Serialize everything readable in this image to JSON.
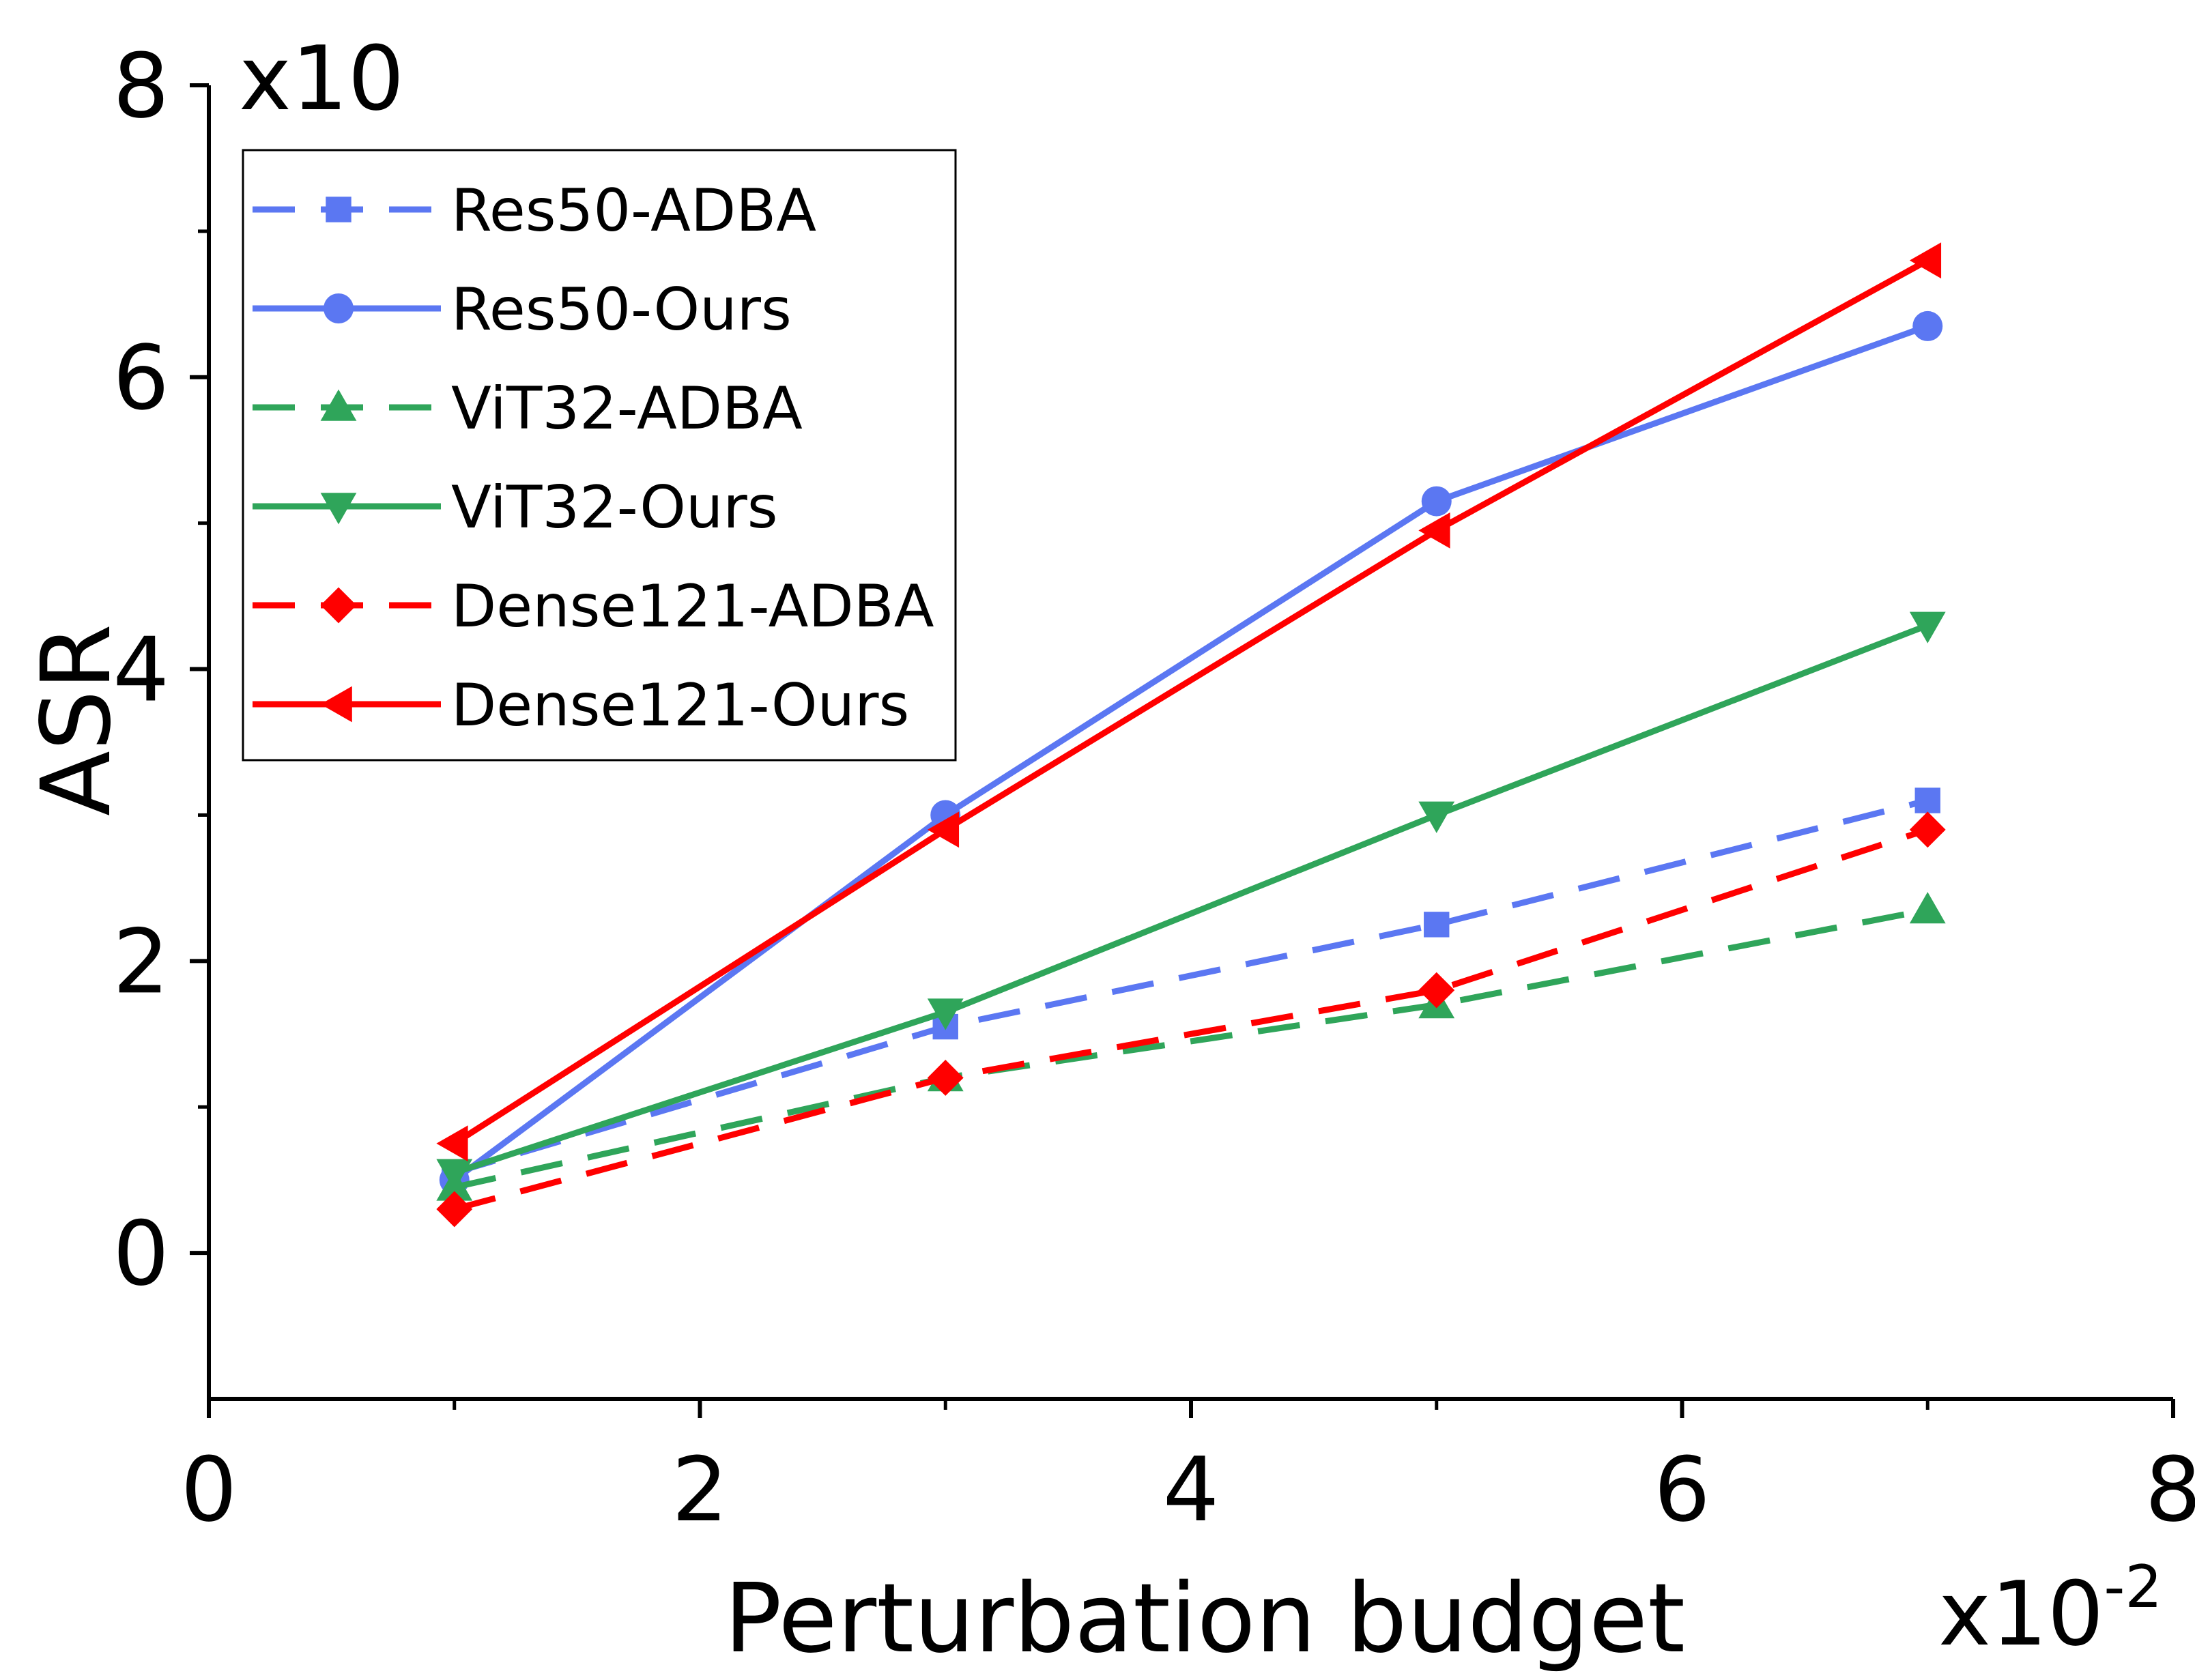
{
  "chart_data": {
    "type": "line",
    "title": "",
    "xlabel": "Perturbation budget",
    "ylabel": "ASR",
    "x_multiplier": {
      "base": "x10",
      "exponent": "-2"
    },
    "y_multiplier": "x10",
    "xlim": [
      0,
      8
    ],
    "ylim": [
      -1,
      8
    ],
    "x_ticks": [
      0,
      2,
      4,
      6,
      8
    ],
    "y_ticks": [
      0,
      2,
      4,
      6,
      8
    ],
    "x": [
      1,
      3,
      5,
      7
    ],
    "legend_position": "top-left",
    "series": [
      {
        "name": "Res50-ADBA",
        "color": "#5b77f2",
        "dash": true,
        "marker": "square",
        "values": [
          0.55,
          1.55,
          2.25,
          3.1
        ]
      },
      {
        "name": "Res50-Ours",
        "color": "#5b77f2",
        "dash": false,
        "marker": "circle",
        "values": [
          0.5,
          3.0,
          5.15,
          6.35
        ]
      },
      {
        "name": "ViT32-ADBA",
        "color": "#2fa55a",
        "dash": true,
        "marker": "triangle-up",
        "values": [
          0.45,
          1.2,
          1.7,
          2.35
        ]
      },
      {
        "name": "ViT32-Ours",
        "color": "#2fa55a",
        "dash": false,
        "marker": "triangle-down",
        "values": [
          0.55,
          1.65,
          3.0,
          4.3
        ]
      },
      {
        "name": "Dense121-ADBA",
        "color": "#ff0000",
        "dash": true,
        "marker": "diamond",
        "values": [
          0.3,
          1.2,
          1.8,
          2.9
        ]
      },
      {
        "name": "Dense121-Ours",
        "color": "#ff0000",
        "dash": false,
        "marker": "triangle-left",
        "values": [
          0.75,
          2.9,
          4.95,
          6.8
        ]
      }
    ]
  }
}
